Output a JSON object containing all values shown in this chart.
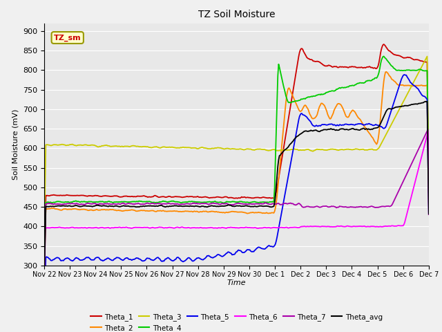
{
  "title": "TZ Soil Moisture",
  "xlabel": "Time",
  "ylabel": "Soil Moisture (mV)",
  "ylim": [
    300,
    920
  ],
  "yticks": [
    300,
    350,
    400,
    450,
    500,
    550,
    600,
    650,
    700,
    750,
    800,
    850,
    900
  ],
  "xtick_labels": [
    "Nov 22",
    "Nov 23",
    "Nov 24",
    "Nov 25",
    "Nov 26",
    "Nov 27",
    "Nov 28",
    "Nov 29",
    "Nov 30",
    "Dec 1",
    "Dec 2",
    "Dec 3",
    "Dec 4",
    "Dec 5",
    "Dec 6",
    "Dec 7"
  ],
  "bg_color": "#e8e8e8",
  "fig_color": "#f0f0f0",
  "grid_color": "#ffffff",
  "series_colors": {
    "Theta_1": "#cc0000",
    "Theta_2": "#ff8800",
    "Theta_3": "#cccc00",
    "Theta_4": "#00cc00",
    "Theta_5": "#0000ee",
    "Theta_6": "#ff00ff",
    "Theta_7": "#aa00aa",
    "Theta_avg": "#000000"
  },
  "legend_box_color": "#ffffcc",
  "legend_box_edge": "#999900",
  "legend_box_text": "TZ_sm",
  "n_points": 480
}
